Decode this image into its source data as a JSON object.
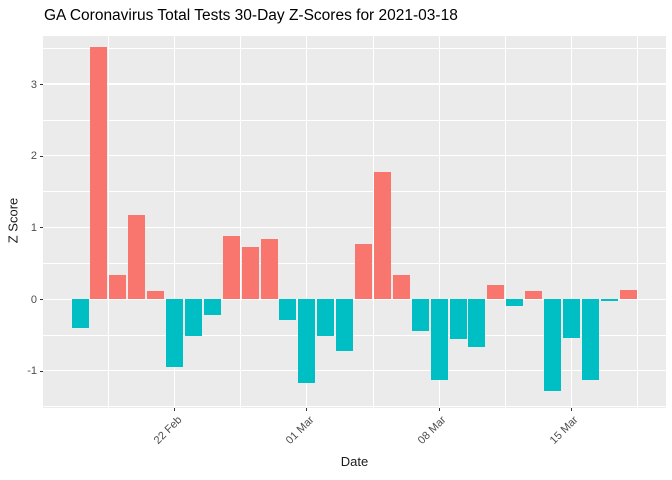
{
  "title": "GA Coronavirus Total Tests 30-Day Z-Scores for 2021-03-18",
  "chart_data": {
    "type": "bar",
    "title": "GA Coronavirus Total Tests 30-Day Z-Scores for 2021-03-18",
    "xlabel": "Date",
    "ylabel": "Z Score",
    "x": [
      "2021-02-17",
      "2021-02-18",
      "2021-02-19",
      "2021-02-20",
      "2021-02-21",
      "2021-02-22",
      "2021-02-23",
      "2021-02-24",
      "2021-02-25",
      "2021-02-26",
      "2021-02-27",
      "2021-02-28",
      "2021-03-01",
      "2021-03-02",
      "2021-03-03",
      "2021-03-04",
      "2021-03-05",
      "2021-03-06",
      "2021-03-07",
      "2021-03-08",
      "2021-03-09",
      "2021-03-10",
      "2021-03-11",
      "2021-03-12",
      "2021-03-13",
      "2021-03-14",
      "2021-03-15",
      "2021-03-16",
      "2021-03-17",
      "2021-03-18"
    ],
    "values": [
      -0.41,
      3.51,
      0.33,
      1.17,
      0.11,
      -0.95,
      -0.51,
      -0.22,
      0.88,
      0.72,
      0.84,
      -0.29,
      -1.17,
      -0.52,
      -0.73,
      0.77,
      1.77,
      0.34,
      -0.44,
      -1.13,
      -0.56,
      -0.67,
      0.2,
      -0.1,
      0.11,
      -1.28,
      -0.55,
      -1.13,
      -0.03,
      0.12
    ],
    "bar_color_positive": "#F8766D",
    "bar_color_negative": "#00BFC4",
    "panel_background": "#EBEBEB",
    "grid_color": "#FFFFFF",
    "axis_text_color": "#4d4d4d",
    "ylim": [
      -1.52,
      3.67
    ],
    "y_major_ticks": [
      3,
      2,
      1,
      0,
      -1
    ],
    "y_major_tick_labels": [
      "3",
      "2",
      "1",
      "0",
      "-1"
    ],
    "y_minor_ticks": [
      3.5,
      2.5,
      1.5,
      0.5,
      -0.5,
      -1.5
    ],
    "x_tick_labels": [
      "22 Feb",
      "01 Mar",
      "08 Mar",
      "15 Mar"
    ],
    "x_tick_indices": [
      5,
      12,
      19,
      26
    ],
    "x_minor_indices": [
      1.5,
      8.5,
      15.5,
      22.5,
      29.5
    ],
    "grid": "on",
    "legend_position": "none"
  }
}
